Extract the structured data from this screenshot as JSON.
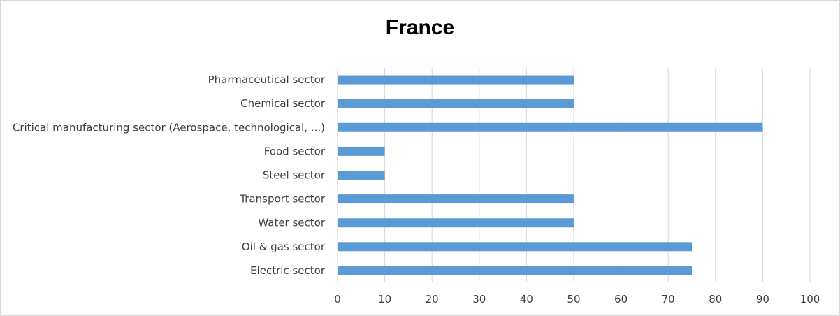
{
  "chart_data": {
    "type": "bar",
    "orientation": "horizontal",
    "title": "France",
    "xlabel": "",
    "ylabel": "",
    "categories": [
      "Pharmaceutical sector",
      "Chemical sector",
      "Critical manufacturing sector (Aerospace, technological, ...)",
      "Food sector",
      "Steel sector",
      "Transport sector",
      "Water sector",
      "Oil & gas sector",
      "Electric sector"
    ],
    "values": [
      50,
      50,
      90,
      10,
      10,
      50,
      50,
      75,
      75
    ],
    "xlim": [
      0,
      100
    ],
    "xticks": [
      0,
      10,
      20,
      30,
      40,
      50,
      60,
      70,
      80,
      90,
      100
    ],
    "grid": true,
    "legend": "none",
    "bar_color": "#5b9bd5"
  }
}
